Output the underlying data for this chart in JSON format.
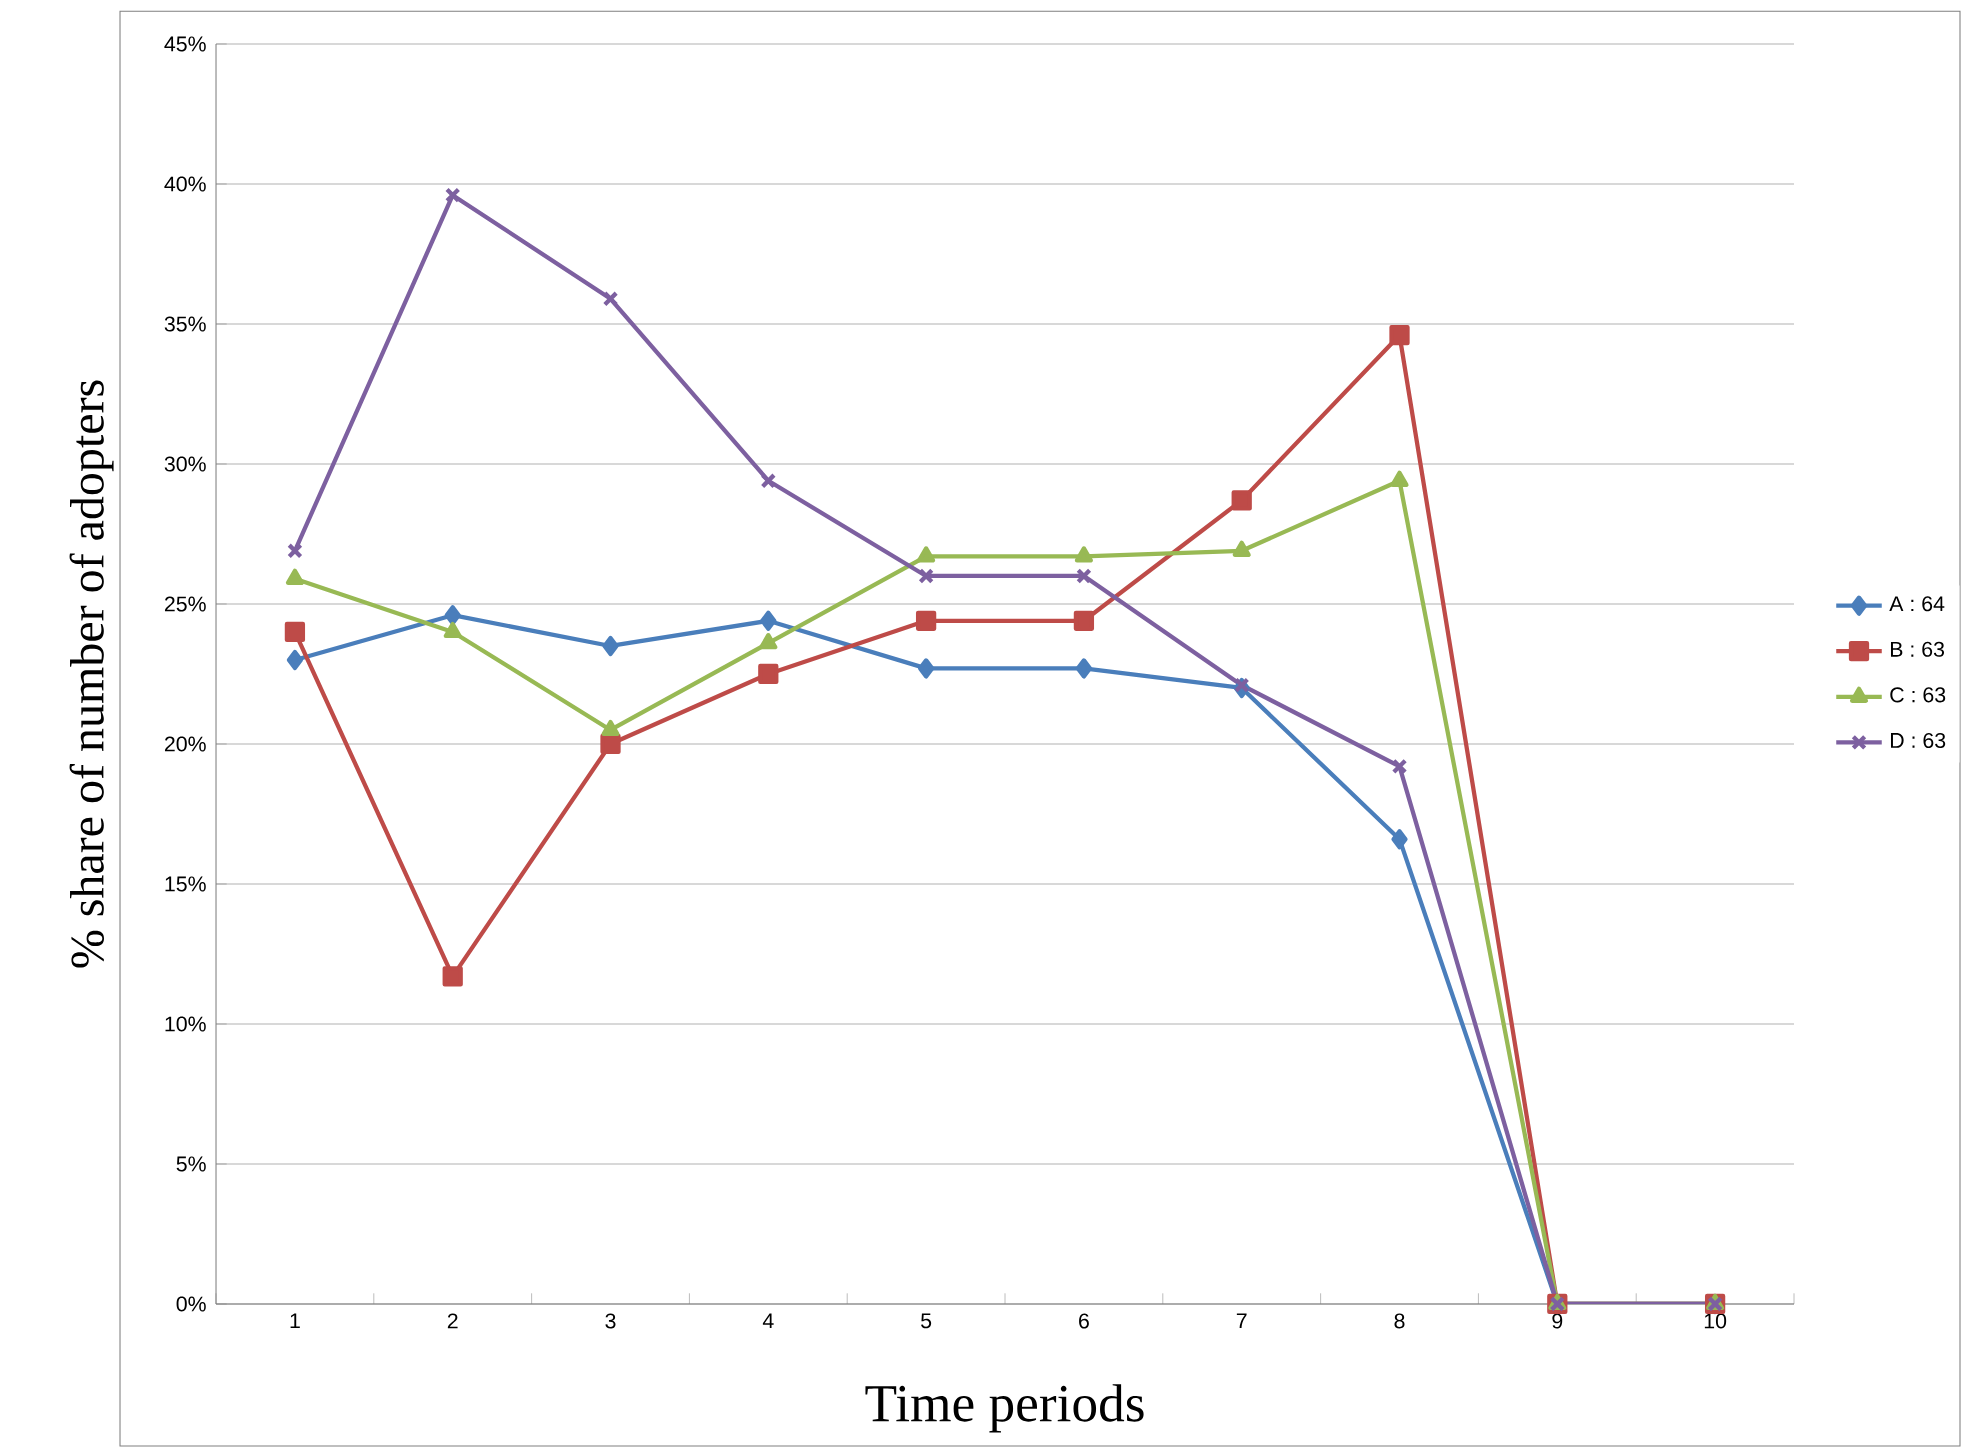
{
  "chart_data": {
    "type": "line",
    "xlabel": "Time periods",
    "ylabel": "% share of number of adopters",
    "categories": [
      "1",
      "2",
      "3",
      "4",
      "5",
      "6",
      "7",
      "8",
      "9",
      "10"
    ],
    "ylim": [
      0,
      45
    ],
    "yticks": [
      {
        "value": 0,
        "label": "0%"
      },
      {
        "value": 5,
        "label": "5%"
      },
      {
        "value": 10,
        "label": "10%"
      },
      {
        "value": 15,
        "label": "15%"
      },
      {
        "value": 20,
        "label": "20%"
      },
      {
        "value": 25,
        "label": "25%"
      },
      {
        "value": 30,
        "label": "30%"
      },
      {
        "value": 35,
        "label": "35%"
      },
      {
        "value": 40,
        "label": "40%"
      },
      {
        "value": 45,
        "label": "45%"
      }
    ],
    "grid": "y",
    "legend": "right",
    "line_style": "solid",
    "series": [
      {
        "name": "A : 64",
        "color": "#4a7ebb",
        "marker": "diamond",
        "values": [
          23.0,
          24.6,
          23.5,
          24.4,
          22.7,
          22.7,
          22.0,
          16.6,
          0,
          0
        ]
      },
      {
        "name": "B : 63",
        "color": "#be4b48",
        "marker": "square",
        "values": [
          24.0,
          11.7,
          20.0,
          22.5,
          24.4,
          24.4,
          28.7,
          34.6,
          0,
          0
        ]
      },
      {
        "name": "C : 63",
        "color": "#98b954",
        "marker": "triangle",
        "values": [
          25.9,
          24.0,
          20.5,
          23.6,
          26.7,
          26.7,
          26.9,
          29.4,
          0,
          0
        ]
      },
      {
        "name": "D : 63",
        "color": "#7d60a0",
        "marker": "cross",
        "values": [
          26.9,
          39.6,
          35.9,
          29.4,
          26.0,
          26.0,
          22.1,
          19.2,
          0,
          0
        ]
      }
    ]
  }
}
